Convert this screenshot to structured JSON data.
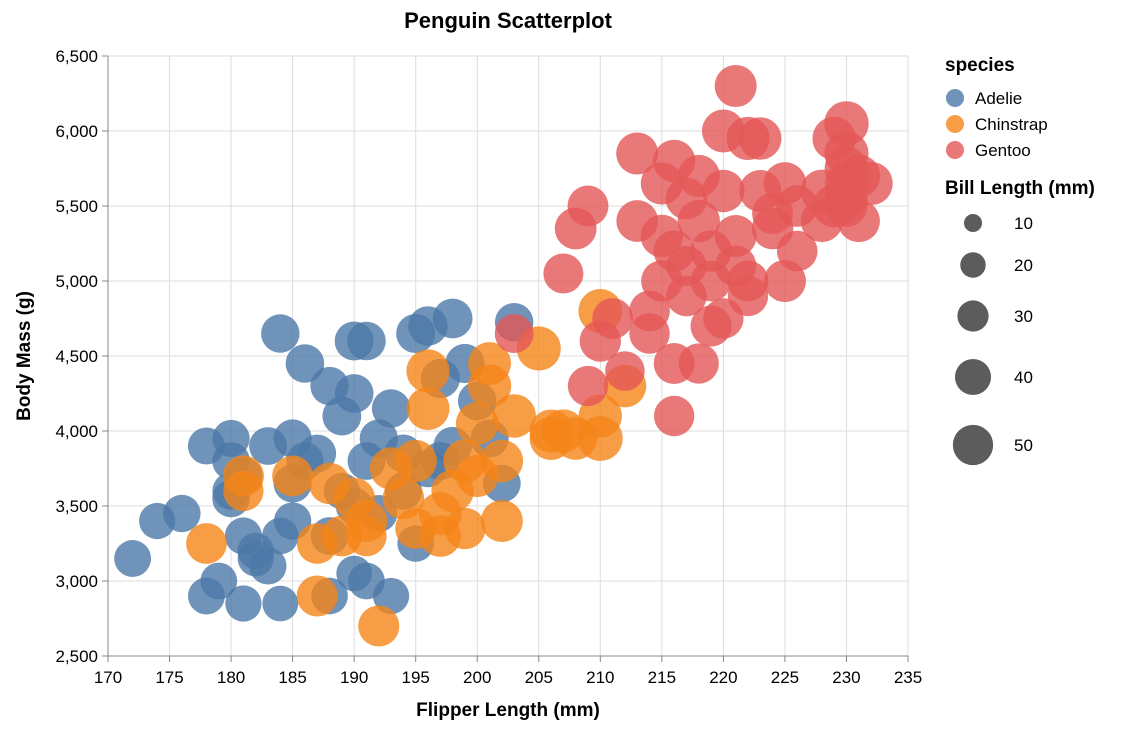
{
  "chart_data": {
    "type": "scatter",
    "title": "Penguin Scatterplot",
    "xlabel": "Flipper Length (mm)",
    "ylabel": "Body Mass (g)",
    "xlim": [
      170,
      235
    ],
    "ylim": [
      2500,
      6500
    ],
    "x_ticks": [
      "170",
      "175",
      "180",
      "185",
      "190",
      "195",
      "200",
      "205",
      "210",
      "215",
      "220",
      "225",
      "230",
      "235"
    ],
    "y_ticks": [
      "2,500",
      "3,000",
      "3,500",
      "4,000",
      "4,500",
      "5,000",
      "5,500",
      "6,000",
      "6,500"
    ],
    "grid": true,
    "opacity": 0.8,
    "legend": {
      "color_title": "species",
      "size_title": "Bill Length (mm)",
      "placement": "right",
      "species": [
        {
          "name": "Adelie",
          "color": "#4c78a8"
        },
        {
          "name": "Chinstrap",
          "color": "#f58518"
        },
        {
          "name": "Gentoo",
          "color": "#e45756"
        }
      ],
      "size_labels": [
        "10",
        "20",
        "30",
        "40",
        "50"
      ]
    },
    "series": [
      {
        "name": "Adelie",
        "color": "#4c78a8",
        "points": [
          [
            172,
            3150,
            37.8
          ],
          [
            174,
            3400,
            36.7
          ],
          [
            176,
            3450,
            39.0
          ],
          [
            178,
            3900,
            38.2
          ],
          [
            178,
            2900,
            37.9
          ],
          [
            179,
            3000,
            37.6
          ],
          [
            180,
            3950,
            38.5
          ],
          [
            180,
            3800,
            39.5
          ],
          [
            180,
            3600,
            38.9
          ],
          [
            180,
            3550,
            39.2
          ],
          [
            181,
            2850,
            36.5
          ],
          [
            181,
            3700,
            40.2
          ],
          [
            181,
            3300,
            38.3
          ],
          [
            182,
            3200,
            37.0
          ],
          [
            182,
            3150,
            36.2
          ],
          [
            183,
            3100,
            38.1
          ],
          [
            183,
            3900,
            39.6
          ],
          [
            184,
            4650,
            41.1
          ],
          [
            184,
            2850,
            35.7
          ],
          [
            184,
            3300,
            37.3
          ],
          [
            185,
            3950,
            40.6
          ],
          [
            185,
            3400,
            38.8
          ],
          [
            185,
            3650,
            40.5
          ],
          [
            186,
            3800,
            39.1
          ],
          [
            186,
            4450,
            41.3
          ],
          [
            187,
            3850,
            39.7
          ],
          [
            188,
            2900,
            37.3
          ],
          [
            188,
            3300,
            39.5
          ],
          [
            188,
            4300,
            40.9
          ],
          [
            189,
            3600,
            36.6
          ],
          [
            189,
            4100,
            42.0
          ],
          [
            190,
            4600,
            42.2
          ],
          [
            190,
            4250,
            41.8
          ],
          [
            190,
            3500,
            37.7
          ],
          [
            190,
            3050,
            35.3
          ],
          [
            191,
            3000,
            37.5
          ],
          [
            191,
            4600,
            41.4
          ],
          [
            191,
            3800,
            39.8
          ],
          [
            192,
            3950,
            40.6
          ],
          [
            192,
            3450,
            38.1
          ],
          [
            193,
            2900,
            36.4
          ],
          [
            193,
            4150,
            41.0
          ],
          [
            194,
            3850,
            40.1
          ],
          [
            194,
            3600,
            38.6
          ],
          [
            195,
            3250,
            37.2
          ],
          [
            195,
            4650,
            42.5
          ],
          [
            196,
            4700,
            43.2
          ],
          [
            196,
            3750,
            39.2
          ],
          [
            197,
            3800,
            40.3
          ],
          [
            197,
            4350,
            42.8
          ],
          [
            198,
            4750,
            44.1
          ],
          [
            198,
            3900,
            40.8
          ],
          [
            199,
            4450,
            42.7
          ],
          [
            200,
            4200,
            41.5
          ],
          [
            201,
            3950,
            40.7
          ],
          [
            202,
            3650,
            39.6
          ],
          [
            203,
            4725,
            41.1
          ]
        ]
      },
      {
        "name": "Chinstrap",
        "color": "#f58518",
        "points": [
          [
            178,
            3250,
            46.1
          ],
          [
            181,
            3600,
            45.2
          ],
          [
            181,
            3700,
            47.0
          ],
          [
            185,
            3700,
            46.5
          ],
          [
            187,
            2900,
            46.9
          ],
          [
            187,
            3250,
            45.9
          ],
          [
            188,
            3650,
            47.6
          ],
          [
            189,
            3300,
            46.4
          ],
          [
            190,
            3550,
            48.5
          ],
          [
            191,
            3400,
            49.0
          ],
          [
            191,
            3300,
            45.5
          ],
          [
            192,
            2700,
            46.9
          ],
          [
            193,
            3750,
            50.0
          ],
          [
            194,
            3550,
            48.1
          ],
          [
            195,
            3800,
            49.8
          ],
          [
            195,
            3350,
            46.7
          ],
          [
            196,
            4400,
            52.0
          ],
          [
            196,
            4150,
            51.3
          ],
          [
            197,
            3450,
            50.5
          ],
          [
            197,
            3300,
            48.7
          ],
          [
            198,
            3600,
            50.2
          ],
          [
            199,
            3350,
            47.5
          ],
          [
            199,
            3800,
            51.9
          ],
          [
            200,
            4050,
            50.7
          ],
          [
            200,
            3700,
            49.5
          ],
          [
            201,
            4300,
            52.2
          ],
          [
            201,
            4450,
            51.0
          ],
          [
            202,
            3400,
            49.0
          ],
          [
            202,
            3800,
            50.3
          ],
          [
            203,
            4100,
            52.8
          ],
          [
            205,
            4550,
            54.2
          ],
          [
            206,
            4000,
            51.5
          ],
          [
            206,
            3950,
            51.4
          ],
          [
            207,
            4000,
            52.0
          ],
          [
            208,
            3950,
            50.8
          ],
          [
            210,
            4800,
            53.5
          ],
          [
            210,
            3950,
            55.8
          ],
          [
            210,
            4100,
            52.1
          ],
          [
            212,
            4300,
            50.7
          ]
        ]
      },
      {
        "name": "Gentoo",
        "color": "#e45756",
        "points": [
          [
            203,
            4650,
            42.0
          ],
          [
            207,
            5050,
            44.5
          ],
          [
            208,
            5350,
            48.7
          ],
          [
            209,
            5500,
            46.5
          ],
          [
            209,
            4300,
            45.1
          ],
          [
            210,
            4600,
            47.6
          ],
          [
            211,
            4750,
            46.2
          ],
          [
            212,
            4400,
            43.5
          ],
          [
            213,
            5850,
            49.2
          ],
          [
            213,
            5400,
            48.4
          ],
          [
            214,
            4800,
            46.1
          ],
          [
            214,
            4650,
            45.5
          ],
          [
            215,
            5000,
            47.8
          ],
          [
            215,
            5650,
            49.6
          ],
          [
            215,
            5300,
            50.4
          ],
          [
            216,
            4100,
            45.4
          ],
          [
            216,
            4450,
            46.5
          ],
          [
            216,
            5800,
            50.0
          ],
          [
            216,
            5200,
            47.3
          ],
          [
            217,
            4900,
            46.0
          ],
          [
            217,
            5550,
            48.7
          ],
          [
            217,
            5100,
            45.1
          ],
          [
            218,
            5400,
            49.9
          ],
          [
            218,
            4450,
            44.9
          ],
          [
            218,
            5700,
            49.5
          ],
          [
            219,
            4700,
            47.0
          ],
          [
            219,
            5200,
            48.2
          ],
          [
            219,
            5000,
            46.3
          ],
          [
            220,
            6000,
            51.1
          ],
          [
            220,
            4750,
            45.3
          ],
          [
            220,
            5600,
            50.1
          ],
          [
            221,
            6300,
            49.2
          ],
          [
            221,
            5100,
            47.5
          ],
          [
            221,
            5300,
            48.8
          ],
          [
            222,
            5950,
            52.1
          ],
          [
            222,
            5000,
            46.6
          ],
          [
            222,
            4900,
            45.2
          ],
          [
            223,
            5950,
            50.0
          ],
          [
            223,
            5600,
            49.1
          ],
          [
            224,
            5350,
            48.1
          ],
          [
            224,
            5450,
            46.8
          ],
          [
            225,
            5000,
            49.3
          ],
          [
            225,
            5650,
            50.8
          ],
          [
            226,
            5200,
            45.8
          ],
          [
            226,
            5500,
            48.5
          ],
          [
            228,
            5400,
            49.4
          ],
          [
            228,
            5600,
            50.5
          ],
          [
            229,
            5950,
            52.5
          ],
          [
            229,
            5500,
            51.2
          ],
          [
            230,
            6050,
            55.1
          ],
          [
            230,
            5550,
            50.2
          ],
          [
            230,
            5750,
            53.4
          ],
          [
            230,
            5850,
            54.3
          ],
          [
            231,
            5700,
            51.5
          ],
          [
            230,
            5650,
            50.9
          ],
          [
            231,
            5400,
            49.8
          ],
          [
            232,
            5650,
            52.2
          ],
          [
            230,
            5500,
            48.6
          ]
        ]
      }
    ]
  }
}
